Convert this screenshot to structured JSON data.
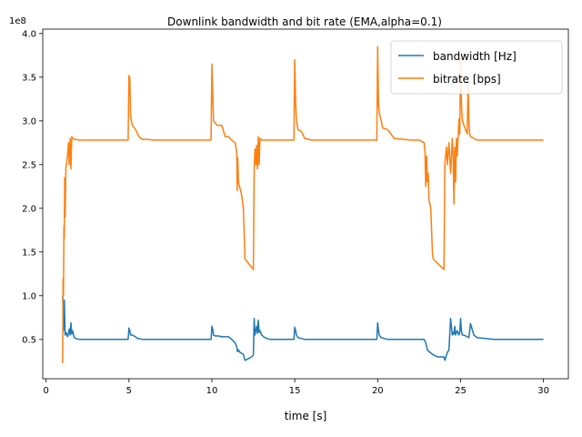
{
  "chart_data": {
    "type": "line",
    "title": "Downlink bandwidth and bit rate (EMA,alpha=0.1)",
    "xlabel": "time [s]",
    "ylabel": "",
    "y_offset_label": "1e8",
    "xlim": [
      -0.2,
      31.5
    ],
    "ylim": [
      0.05,
      4.05
    ],
    "x_ticks": [
      0,
      5,
      10,
      15,
      20,
      25,
      30
    ],
    "y_ticks": [
      0.5,
      1.0,
      1.5,
      2.0,
      2.5,
      3.0,
      3.5,
      4.0
    ],
    "x_tick_labels": [
      "0",
      "5",
      "10",
      "15",
      "20",
      "25",
      "30"
    ],
    "y_tick_labels": [
      "0.5",
      "1.0",
      "1.5",
      "2.0",
      "2.5",
      "3.0",
      "3.5",
      "4.0"
    ],
    "grid": false,
    "legend_position": "top-right",
    "colors": {
      "bandwidth": "#1f77b4",
      "bitrate": "#ff7f0e"
    },
    "series": [
      {
        "name": "bandwidth [Hz]",
        "x": [
          1.0,
          1.05,
          1.1,
          1.15,
          1.2,
          1.3,
          1.4,
          1.45,
          1.5,
          1.55,
          1.6,
          1.7,
          1.8,
          2.0,
          3.0,
          4.0,
          4.95,
          5.0,
          5.05,
          5.1,
          5.2,
          5.3,
          5.4,
          5.5,
          5.6,
          5.8,
          6.0,
          7.0,
          8.0,
          9.0,
          9.95,
          10.0,
          10.05,
          10.1,
          10.2,
          10.4,
          10.6,
          10.8,
          11.0,
          11.2,
          11.4,
          11.5,
          11.55,
          11.6,
          11.7,
          11.9,
          12.0,
          12.2,
          12.4,
          12.5,
          12.55,
          12.6,
          12.7,
          12.75,
          12.8,
          12.85,
          12.9,
          13.0,
          13.2,
          13.5,
          14.0,
          14.95,
          15.0,
          15.05,
          15.1,
          15.2,
          15.4,
          15.6,
          16.0,
          17.0,
          18.0,
          19.0,
          19.95,
          20.0,
          20.05,
          20.1,
          20.2,
          20.4,
          20.6,
          21.0,
          22.0,
          22.8,
          22.9,
          22.95,
          23.0,
          23.1,
          23.3,
          23.6,
          24.0,
          24.05,
          24.1,
          24.15,
          24.2,
          24.3,
          24.4,
          24.5,
          24.55,
          24.6,
          24.65,
          24.7,
          24.8,
          24.9,
          24.95,
          25.0,
          25.05,
          25.1,
          25.2,
          25.3,
          25.4,
          25.5,
          25.6,
          25.8,
          26.0,
          26.5,
          27.0,
          28.0,
          29.0,
          30.0
        ],
        "values": [
          1.0,
          0.6,
          0.95,
          0.55,
          0.58,
          0.53,
          0.62,
          0.55,
          0.69,
          0.56,
          0.6,
          0.52,
          0.51,
          0.5,
          0.5,
          0.5,
          0.5,
          0.63,
          0.6,
          0.55,
          0.55,
          0.54,
          0.53,
          0.51,
          0.51,
          0.5,
          0.5,
          0.5,
          0.5,
          0.5,
          0.5,
          0.65,
          0.62,
          0.55,
          0.54,
          0.54,
          0.53,
          0.53,
          0.53,
          0.5,
          0.46,
          0.42,
          0.36,
          0.38,
          0.35,
          0.33,
          0.26,
          0.28,
          0.3,
          0.32,
          0.74,
          0.55,
          0.65,
          0.57,
          0.72,
          0.58,
          0.6,
          0.55,
          0.52,
          0.5,
          0.5,
          0.5,
          0.64,
          0.6,
          0.55,
          0.52,
          0.51,
          0.5,
          0.5,
          0.5,
          0.5,
          0.5,
          0.5,
          0.69,
          0.6,
          0.55,
          0.52,
          0.51,
          0.5,
          0.5,
          0.5,
          0.5,
          0.46,
          0.42,
          0.38,
          0.36,
          0.33,
          0.3,
          0.3,
          0.26,
          0.29,
          0.32,
          0.35,
          0.38,
          0.74,
          0.55,
          0.58,
          0.56,
          0.65,
          0.55,
          0.6,
          0.55,
          0.58,
          0.74,
          0.6,
          0.55,
          0.55,
          0.54,
          0.53,
          0.52,
          0.68,
          0.55,
          0.52,
          0.51,
          0.5,
          0.5,
          0.5,
          0.5
        ]
      },
      {
        "name": "bitrate [bps]",
        "x": [
          1.0,
          1.03,
          1.05,
          1.08,
          1.1,
          1.12,
          1.15,
          1.2,
          1.25,
          1.3,
          1.35,
          1.4,
          1.45,
          1.5,
          1.55,
          1.6,
          1.7,
          2.0,
          3.0,
          4.0,
          4.95,
          5.0,
          5.03,
          5.05,
          5.1,
          5.2,
          5.4,
          5.6,
          5.8,
          6.0,
          6.5,
          7.0,
          8.0,
          9.0,
          9.95,
          10.0,
          10.05,
          10.1,
          10.3,
          10.6,
          10.8,
          11.0,
          11.2,
          11.4,
          11.5,
          11.53,
          11.56,
          11.6,
          11.8,
          11.9,
          12.0,
          12.5,
          12.55,
          12.6,
          12.65,
          12.7,
          12.75,
          12.8,
          12.85,
          12.9,
          13.0,
          13.2,
          13.5,
          14.0,
          14.95,
          15.0,
          15.05,
          15.1,
          15.2,
          15.4,
          15.6,
          16.0,
          17.0,
          18.0,
          19.0,
          19.95,
          20.0,
          20.05,
          20.1,
          20.3,
          20.6,
          21.0,
          22.0,
          22.5,
          22.8,
          22.85,
          22.9,
          22.95,
          23.0,
          23.05,
          23.1,
          23.2,
          23.3,
          23.35,
          24.0,
          24.05,
          24.1,
          24.15,
          24.2,
          24.3,
          24.4,
          24.5,
          24.55,
          24.6,
          24.65,
          24.7,
          24.75,
          24.8,
          24.9,
          24.95,
          25.0,
          25.05,
          25.1,
          25.2,
          25.3,
          25.4,
          25.45,
          25.5,
          25.55,
          25.6,
          25.8,
          26.0,
          26.5,
          27.0,
          28.0,
          29.0,
          30.0
        ],
        "values": [
          0.23,
          1.2,
          1.0,
          1.8,
          1.65,
          2.35,
          1.9,
          2.48,
          2.52,
          2.62,
          2.75,
          2.5,
          2.8,
          2.45,
          2.82,
          2.8,
          2.79,
          2.78,
          2.78,
          2.78,
          2.78,
          3.52,
          3.3,
          3.5,
          3.05,
          2.95,
          2.9,
          2.82,
          2.79,
          2.79,
          2.78,
          2.78,
          2.78,
          2.78,
          2.78,
          3.65,
          3.3,
          3.0,
          2.95,
          2.95,
          2.82,
          2.82,
          2.78,
          2.75,
          2.65,
          2.2,
          2.58,
          2.3,
          2.15,
          2.0,
          1.42,
          1.3,
          2.45,
          2.68,
          2.5,
          2.72,
          2.45,
          2.82,
          2.5,
          2.8,
          2.78,
          2.78,
          2.78,
          2.78,
          2.78,
          3.7,
          3.2,
          3.0,
          2.9,
          2.88,
          2.8,
          2.78,
          2.78,
          2.78,
          2.78,
          2.78,
          3.85,
          3.2,
          3.1,
          2.92,
          2.9,
          2.8,
          2.78,
          2.78,
          2.75,
          2.65,
          2.25,
          2.6,
          2.3,
          2.4,
          2.1,
          2.0,
          1.5,
          1.42,
          1.3,
          2.52,
          2.6,
          2.7,
          2.5,
          2.75,
          2.4,
          2.8,
          2.6,
          2.05,
          2.7,
          2.3,
          2.8,
          2.6,
          3.02,
          2.85,
          3.72,
          3.2,
          3.02,
          2.95,
          2.9,
          2.85,
          3.45,
          3.0,
          2.85,
          2.82,
          2.8,
          2.78,
          2.78,
          2.78,
          2.78,
          2.78,
          2.78
        ]
      }
    ]
  }
}
